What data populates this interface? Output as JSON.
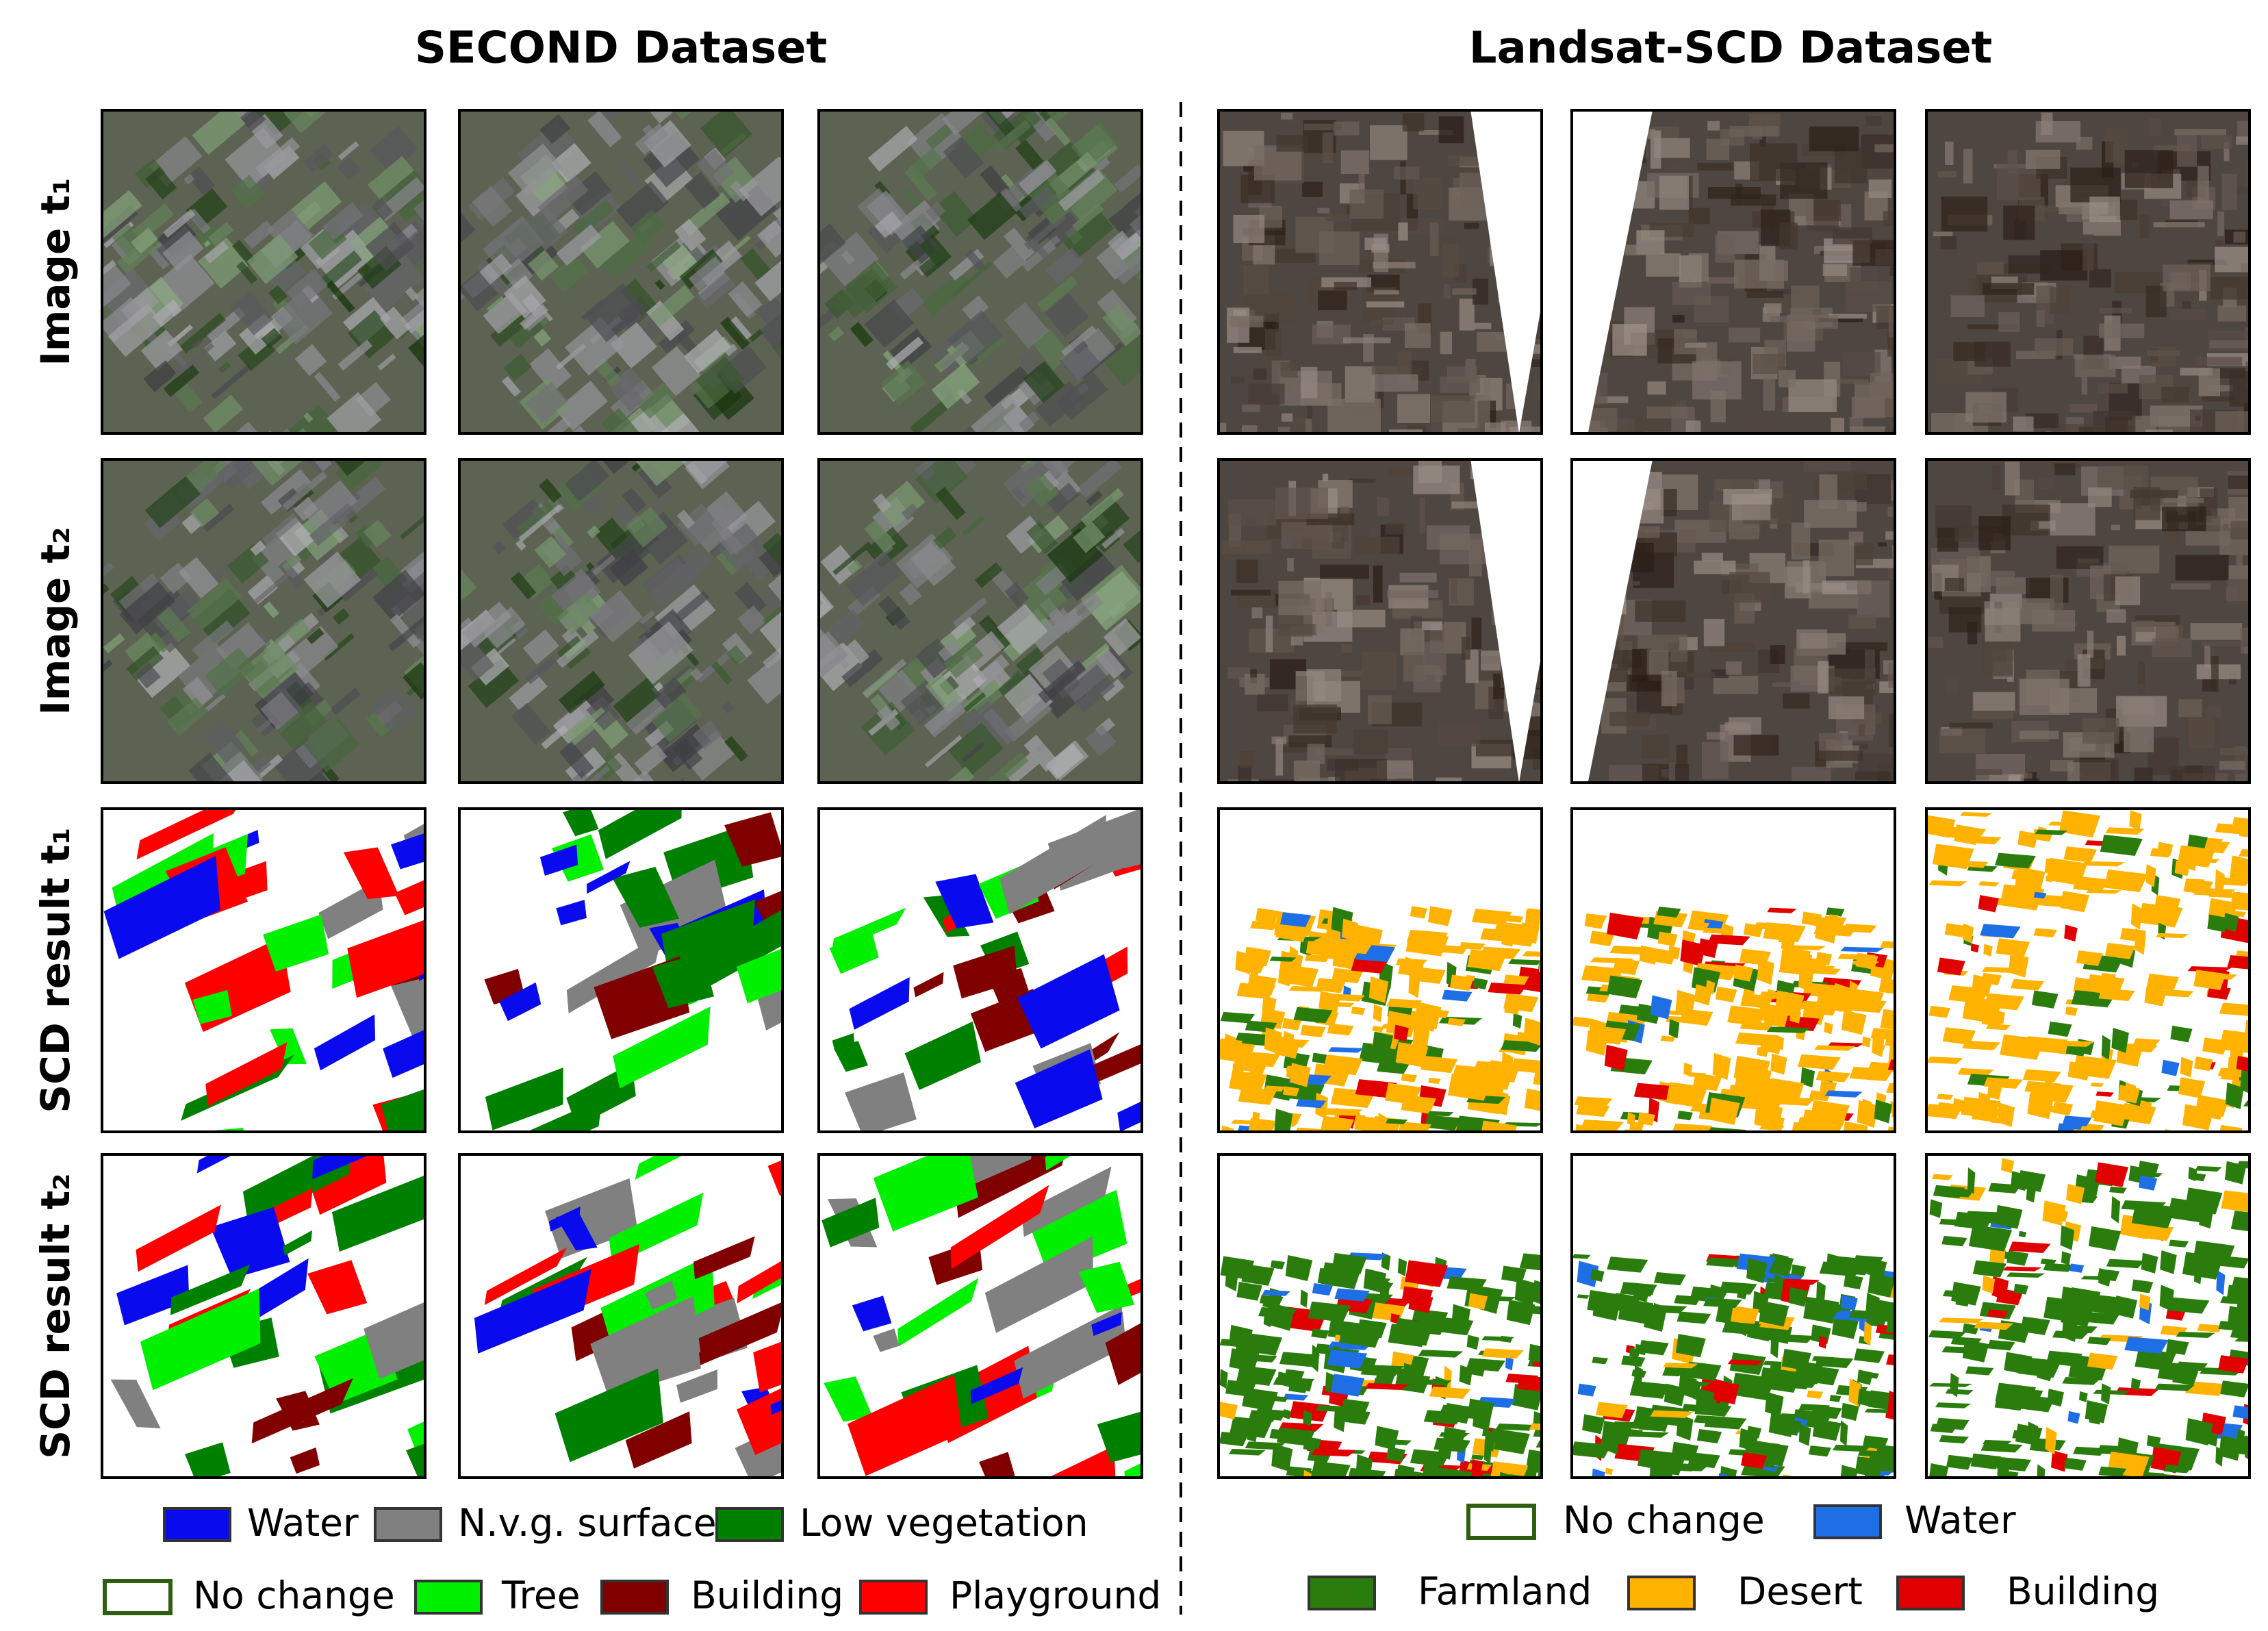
{
  "header": {
    "left_title": "SECOND Dataset",
    "right_title": "Landsat-SCD Dataset"
  },
  "row_labels": [
    "Image t₁",
    "Image t₂",
    "SCD result t₁",
    "SCD result t₂"
  ],
  "legends": [
    {
      "items": [
        {
          "label": "Water",
          "color": "#0a0aef"
        },
        {
          "label": "N.v.g. surface",
          "color": "#808080"
        },
        {
          "label": "Low vegetation",
          "color": "#008000"
        },
        {
          "label": "No change",
          "color": "#ffffff"
        },
        {
          "label": "Tree",
          "color": "#00f000"
        },
        {
          "label": "Building",
          "color": "#800000"
        },
        {
          "label": "Playground",
          "color": "#ff0000"
        }
      ]
    },
    {
      "items": [
        {
          "label": "No change",
          "color": "#ffffff"
        },
        {
          "label": "Water",
          "color": "#1e6fe6"
        },
        {
          "label": "Farmland",
          "color": "#2a7d0c"
        },
        {
          "label": "Desert",
          "color": "#ffb300"
        },
        {
          "label": "Building",
          "color": "#e00000"
        }
      ]
    }
  ]
}
